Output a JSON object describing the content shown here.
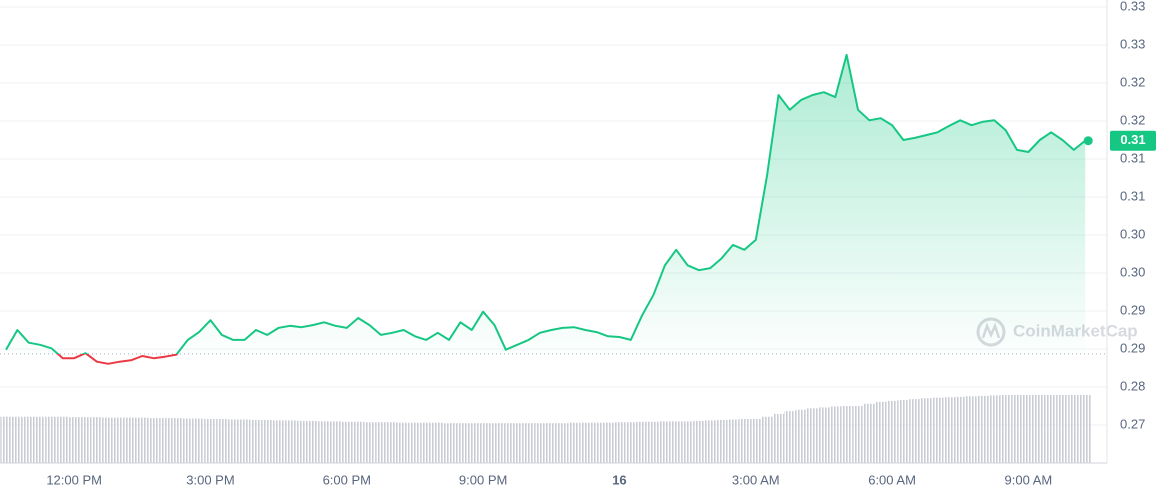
{
  "chart_data": {
    "type": "line",
    "categories": [
      null,
      null,
      null,
      null,
      null,
      null,
      "12:00 PM",
      null,
      null,
      null,
      null,
      null,
      null,
      null,
      null,
      null,
      null,
      null,
      "3:00 PM",
      null,
      null,
      null,
      null,
      null,
      null,
      null,
      null,
      null,
      null,
      null,
      "6:00 PM",
      null,
      null,
      null,
      null,
      null,
      null,
      null,
      null,
      null,
      null,
      null,
      "9:00 PM",
      null,
      null,
      null,
      null,
      null,
      null,
      null,
      null,
      null,
      null,
      null,
      "16",
      null,
      null,
      null,
      null,
      null,
      null,
      null,
      null,
      null,
      null,
      null,
      "3:00 AM",
      null,
      null,
      null,
      null,
      null,
      null,
      null,
      null,
      null,
      null,
      null,
      "6:00 AM",
      null,
      null,
      null,
      null,
      null,
      null,
      null,
      null,
      null,
      null,
      null,
      "9:00 AM",
      null,
      null,
      null,
      null,
      null
    ],
    "values": [
      0.2852,
      0.288,
      0.2862,
      0.2859,
      0.2854,
      0.284,
      0.284,
      0.2847,
      0.2835,
      0.2832,
      0.2835,
      0.2837,
      0.2843,
      0.284,
      0.2842,
      0.2845,
      0.2866,
      0.2877,
      0.2894,
      0.2873,
      0.2866,
      0.2866,
      0.288,
      0.2873,
      0.2883,
      0.2886,
      0.2884,
      0.2887,
      0.2891,
      0.2886,
      0.2883,
      0.2897,
      0.2887,
      0.2873,
      0.2876,
      0.288,
      0.2871,
      0.2866,
      0.2876,
      0.2866,
      0.2891,
      0.288,
      0.2906,
      0.2887,
      0.2852,
      0.2859,
      0.2866,
      0.2876,
      0.288,
      0.2883,
      0.2884,
      0.288,
      0.2877,
      0.2871,
      0.287,
      0.2866,
      0.2901,
      0.293,
      0.2972,
      0.2994,
      0.2972,
      0.2965,
      0.2968,
      0.2982,
      0.3001,
      0.2994,
      0.3008,
      0.31,
      0.3214,
      0.3193,
      0.3207,
      0.3214,
      0.3218,
      0.3211,
      0.3271,
      0.3193,
      0.3178,
      0.3181,
      0.3171,
      0.315,
      0.3153,
      0.3157,
      0.3161,
      0.317,
      0.3178,
      0.3171,
      0.3176,
      0.3178,
      0.3164,
      0.3136,
      0.3133,
      0.315,
      0.3161,
      0.315,
      0.3136,
      0.3149
    ],
    "color": "#16c784",
    "down_color": "#ea3943",
    "baseline": 0.2846,
    "current_price": {
      "value": 0.3149,
      "label": "0.31"
    },
    "ylim": [
      0.2691,
      0.3349
    ],
    "yticks": [
      {
        "value": 0.3339,
        "label": "0.33"
      },
      {
        "value": 0.3285,
        "label": "0.33"
      },
      {
        "value": 0.3231,
        "label": "0.32"
      },
      {
        "value": 0.3177,
        "label": "0.32"
      },
      {
        "value": 0.3123,
        "label": "0.31"
      },
      {
        "value": 0.3069,
        "label": "0.31"
      },
      {
        "value": 0.3015,
        "label": "0.30"
      },
      {
        "value": 0.2961,
        "label": "0.30"
      },
      {
        "value": 0.2907,
        "label": "0.29"
      },
      {
        "value": 0.2853,
        "label": "0.29"
      },
      {
        "value": 0.2799,
        "label": "0.28"
      },
      {
        "value": 0.2745,
        "label": "0.27"
      }
    ],
    "grid": true,
    "y2lim": [
      0,
      100
    ],
    "volume": {
      "color": "#c9ccd3",
      "axis": "y2",
      "values": [
        10.0,
        10.0,
        10.0,
        10.0,
        10.0,
        10.0,
        9.9,
        9.9,
        9.9,
        9.8,
        9.8,
        9.8,
        9.8,
        9.7,
        9.7,
        9.7,
        9.6,
        9.6,
        9.5,
        9.5,
        9.4,
        9.4,
        9.3,
        9.3,
        9.2,
        9.2,
        9.1,
        9.1,
        9.0,
        9.0,
        8.9,
        8.9,
        8.8,
        8.8,
        8.8,
        8.7,
        8.7,
        8.7,
        8.7,
        8.6,
        8.6,
        8.6,
        8.6,
        8.6,
        8.6,
        8.6,
        8.6,
        8.6,
        8.6,
        8.6,
        8.7,
        8.7,
        8.7,
        8.7,
        8.8,
        8.8,
        8.9,
        8.9,
        9.0,
        9.0,
        9.0,
        9.1,
        9.2,
        9.3,
        9.4,
        9.5,
        9.5,
        10.0,
        10.6,
        11.2,
        11.5,
        11.8,
        12.0,
        12.2,
        12.3,
        12.3,
        12.8,
        13.2,
        13.4,
        13.6,
        13.8,
        14.0,
        14.1,
        14.2,
        14.3,
        14.4,
        14.5,
        14.6,
        14.7,
        14.7,
        14.7,
        14.7,
        14.7,
        14.7,
        14.7,
        14.7
      ]
    },
    "watermark": "CoinMarketCap"
  }
}
